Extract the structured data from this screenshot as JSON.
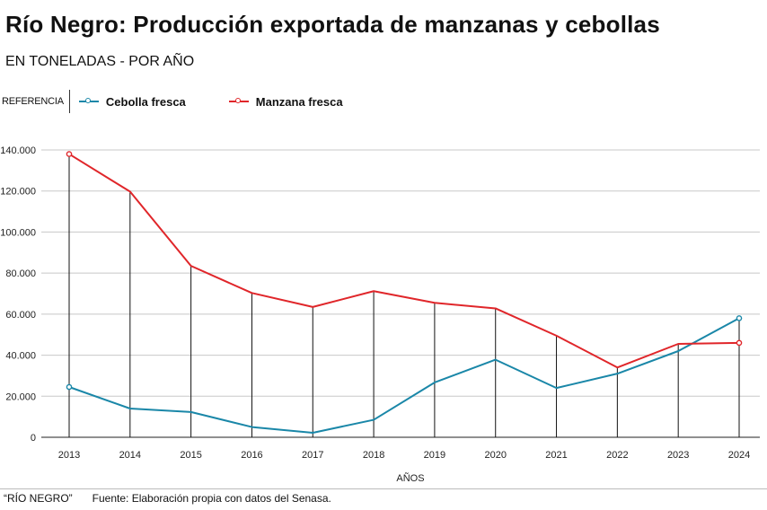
{
  "header": {
    "title": "Río Negro: Producción exportada de manzanas y cebollas",
    "subtitle": "EN TONELADAS - POR AÑO"
  },
  "legend": {
    "reference_label": "REFERENCIA",
    "items": [
      {
        "label": "Cebolla fresca",
        "color": "#1a87a8"
      },
      {
        "label": "Manzana fresca",
        "color": "#e0262a"
      }
    ]
  },
  "chart_data": {
    "type": "line",
    "title": "Río Negro: Producción exportada de manzanas y cebollas",
    "subtitle": "EN TONELADAS - POR AÑO",
    "xlabel": "AÑOS",
    "ylabel": "",
    "x": [
      "2013",
      "2014",
      "2015",
      "2016",
      "2017",
      "2018",
      "2019",
      "2020",
      "2021",
      "2022",
      "2023",
      "2024"
    ],
    "ylim": [
      0,
      140000
    ],
    "yticks": [
      0,
      20000,
      40000,
      60000,
      80000,
      100000,
      120000,
      140000
    ],
    "ytick_labels": [
      "0",
      "20.000",
      "40.000",
      "60.000",
      "80.000",
      "100.000",
      "120.000",
      "140.000"
    ],
    "grid": "horizontal",
    "legend_position": "top-left",
    "series": [
      {
        "name": "Cebolla fresca",
        "color": "#1a87a8",
        "values": [
          24500,
          14000,
          12300,
          5000,
          2200,
          8500,
          26700,
          37800,
          24000,
          31000,
          42000,
          58000
        ]
      },
      {
        "name": "Manzana fresca",
        "color": "#e0262a",
        "values": [
          138000,
          119700,
          83500,
          70300,
          63500,
          71200,
          65500,
          62800,
          49500,
          34000,
          45500,
          46000
        ]
      }
    ]
  },
  "footer": {
    "brand": "“RÍO NEGRO”",
    "source": "Fuente: Elaboración propia con datos del Senasa."
  }
}
